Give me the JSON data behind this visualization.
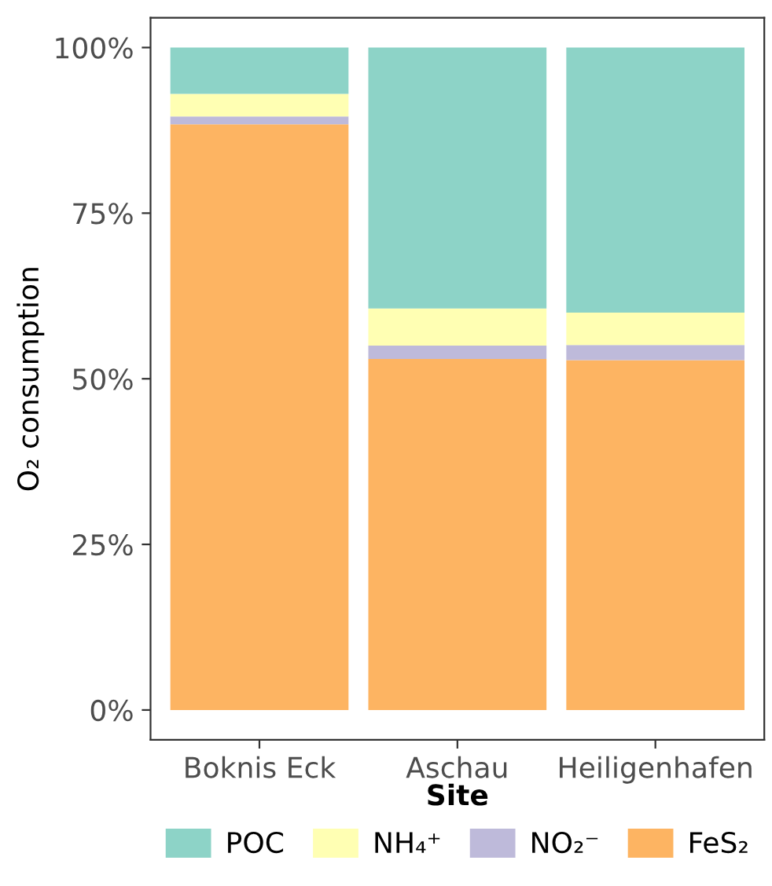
{
  "chart_data": {
    "type": "bar",
    "stacked": true,
    "xlabel": "Site",
    "ylabel": "O₂ consumption",
    "categories": [
      "Boknis Eck",
      "Aschau",
      "Heiligenhafen"
    ],
    "series": [
      {
        "name": "FeS₂",
        "color": "#fdb462",
        "values": [
          88.4,
          53.0,
          52.8
        ]
      },
      {
        "name": "NO₂⁻",
        "color": "#bebada",
        "values": [
          1.2,
          2.0,
          2.3
        ]
      },
      {
        "name": "NH₄⁺",
        "color": "#ffffb3",
        "values": [
          3.4,
          5.6,
          4.9
        ]
      },
      {
        "name": "POC",
        "color": "#8dd3c7",
        "values": [
          7.0,
          39.4,
          40.0
        ]
      }
    ],
    "ylim": [
      -4.5,
      104.5
    ],
    "yticks": [
      {
        "value": 0,
        "label": "0%"
      },
      {
        "value": 25,
        "label": "25%"
      },
      {
        "value": 50,
        "label": "50%"
      },
      {
        "value": 75,
        "label": "75%"
      },
      {
        "value": 100,
        "label": "100%"
      }
    ],
    "legend": "bottom"
  }
}
